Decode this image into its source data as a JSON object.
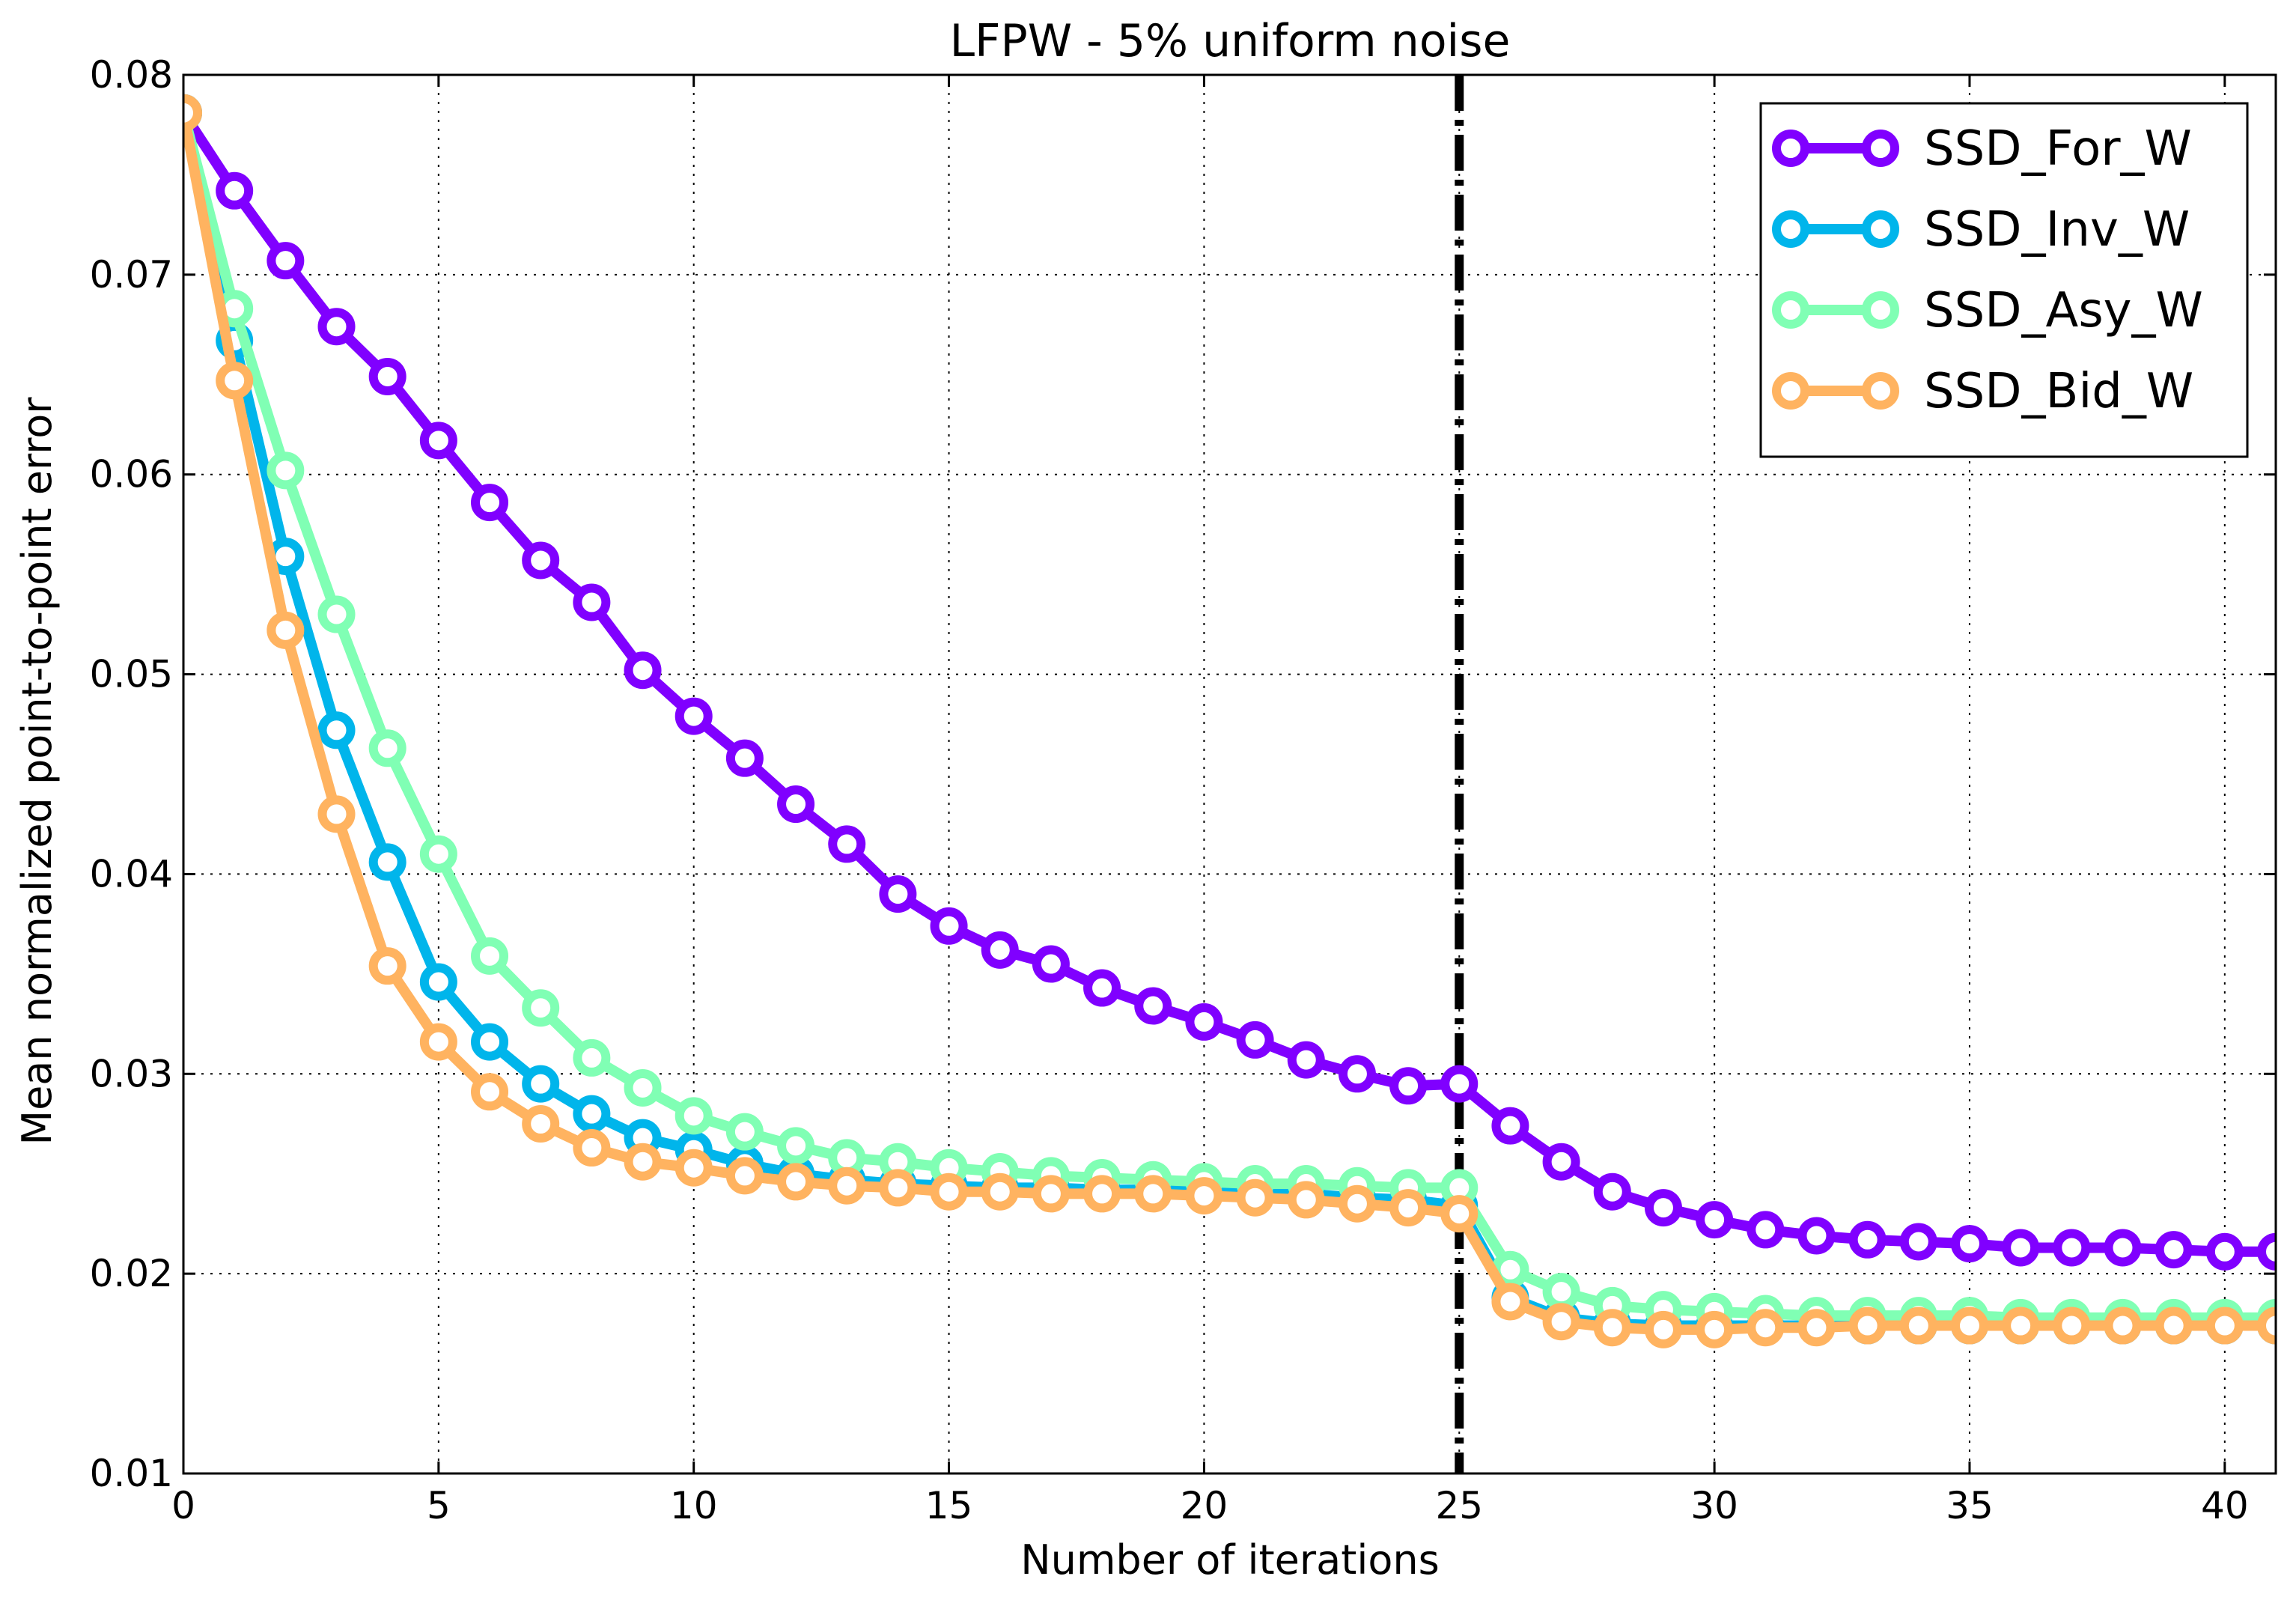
{
  "chart_data": {
    "type": "line",
    "title": "LFPW - 5% uniform noise",
    "xlabel": "Number of iterations",
    "ylabel": "Mean normalized point-to-point error",
    "xlim": [
      0,
      41
    ],
    "ylim": [
      0.01,
      0.08
    ],
    "x_ticks": [
      0,
      5,
      10,
      15,
      20,
      25,
      30,
      35,
      40
    ],
    "y_ticks": [
      0.01,
      0.02,
      0.03,
      0.04,
      0.05,
      0.06,
      0.07,
      0.08
    ],
    "x_tick_labels": [
      "0",
      "5",
      "10",
      "15",
      "20",
      "25",
      "30",
      "35",
      "40"
    ],
    "y_tick_labels": [
      "0.01",
      "0.02",
      "0.03",
      "0.04",
      "0.05",
      "0.06",
      "0.07",
      "0.08"
    ],
    "grid": true,
    "legend_position": "top-right",
    "vertical_line": {
      "x": 25,
      "style": "dash-dot",
      "color": "#000000"
    },
    "x": [
      0,
      1,
      2,
      3,
      4,
      5,
      6,
      7,
      8,
      9,
      10,
      11,
      12,
      13,
      14,
      15,
      16,
      17,
      18,
      19,
      20,
      21,
      22,
      23,
      24,
      25,
      26,
      27,
      28,
      29,
      30,
      31,
      32,
      33,
      34,
      35,
      36,
      37,
      38,
      39,
      40,
      41
    ],
    "series": [
      {
        "name": "SSD_For_W",
        "color": "#8000ff",
        "values": [
          0.0781,
          0.0742,
          0.0707,
          0.0674,
          0.0649,
          0.0617,
          0.0586,
          0.0557,
          0.0536,
          0.0502,
          0.0479,
          0.0458,
          0.0435,
          0.0415,
          0.039,
          0.0374,
          0.0362,
          0.0355,
          0.0343,
          0.0334,
          0.0326,
          0.0317,
          0.0307,
          0.03,
          0.0294,
          0.0295,
          0.0274,
          0.0256,
          0.0241,
          0.0233,
          0.0227,
          0.0222,
          0.0219,
          0.0217,
          0.0216,
          0.0215,
          0.0213,
          0.0213,
          0.0213,
          0.0212,
          0.0211,
          0.0211
        ]
      },
      {
        "name": "SSD_Inv_W",
        "color": "#00b5eb",
        "values": [
          0.0781,
          0.0667,
          0.0559,
          0.0472,
          0.0406,
          0.0346,
          0.0316,
          0.0295,
          0.028,
          0.0268,
          0.0262,
          0.0255,
          0.025,
          0.0247,
          0.0245,
          0.0244,
          0.0243,
          0.0243,
          0.0242,
          0.0242,
          0.0241,
          0.0241,
          0.024,
          0.0238,
          0.0237,
          0.0234,
          0.0188,
          0.0178,
          0.0175,
          0.0174,
          0.0174,
          0.0174,
          0.0174,
          0.0174,
          0.0174,
          0.0174,
          0.0174,
          0.0174,
          0.0174,
          0.0174,
          0.0174,
          0.0174
        ]
      },
      {
        "name": "SSD_Asy_W",
        "color": "#80ffb4",
        "values": [
          0.0781,
          0.0683,
          0.0602,
          0.053,
          0.0463,
          0.041,
          0.0359,
          0.0333,
          0.0308,
          0.0293,
          0.0279,
          0.0271,
          0.0264,
          0.0258,
          0.0256,
          0.0253,
          0.0251,
          0.0249,
          0.0248,
          0.0247,
          0.0246,
          0.0245,
          0.0245,
          0.0244,
          0.0243,
          0.0243,
          0.0202,
          0.0191,
          0.0184,
          0.0182,
          0.0181,
          0.018,
          0.0179,
          0.0179,
          0.0179,
          0.0179,
          0.0178,
          0.0178,
          0.0178,
          0.0178,
          0.0178,
          0.0178
        ]
      },
      {
        "name": "SSD_Bid_W",
        "color": "#ffb360",
        "values": [
          0.0781,
          0.0647,
          0.0522,
          0.043,
          0.0354,
          0.0316,
          0.0291,
          0.0275,
          0.0263,
          0.0256,
          0.0253,
          0.0249,
          0.0246,
          0.0244,
          0.0243,
          0.0241,
          0.0241,
          0.024,
          0.024,
          0.024,
          0.0239,
          0.0238,
          0.0237,
          0.0235,
          0.0233,
          0.023,
          0.0186,
          0.0176,
          0.0173,
          0.0172,
          0.0172,
          0.0173,
          0.0173,
          0.0174,
          0.0174,
          0.0174,
          0.0174,
          0.0174,
          0.0174,
          0.0174,
          0.0174,
          0.0174
        ]
      }
    ]
  }
}
